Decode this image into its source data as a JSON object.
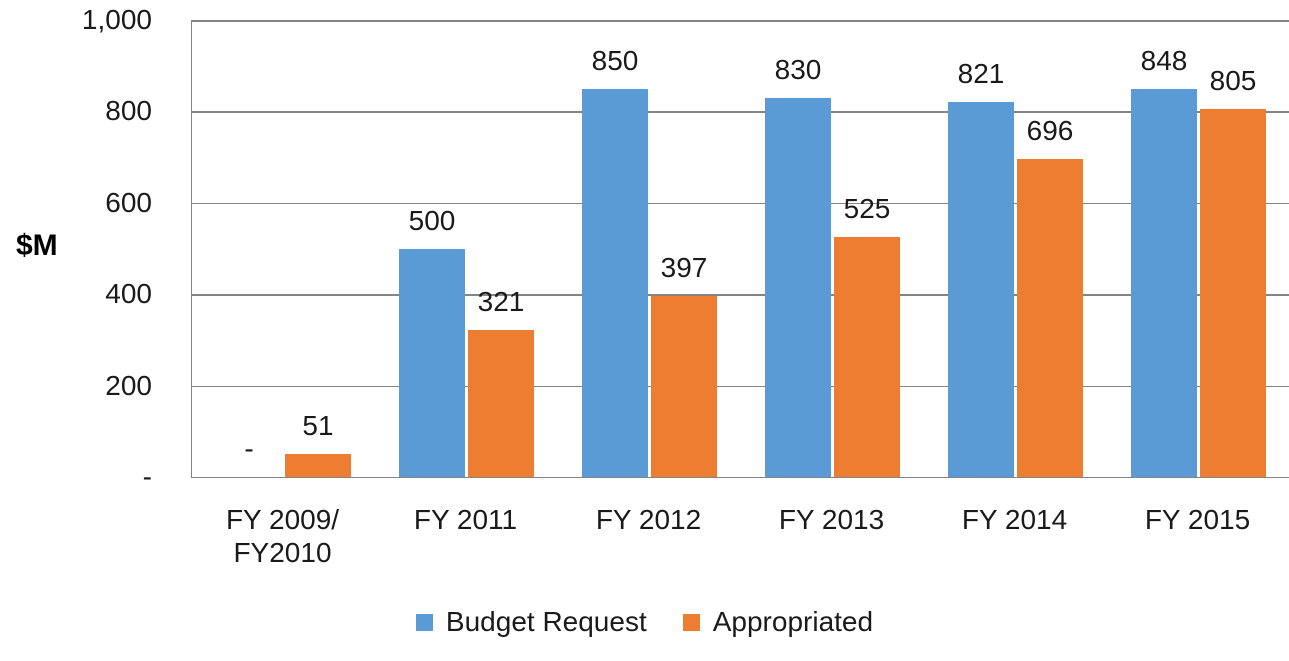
{
  "chart_data": {
    "type": "bar",
    "title": "",
    "ylabel": "$M",
    "xlabel": "",
    "ylim": [
      0,
      1000
    ],
    "y_tick_interval": 200,
    "y_ticks": [
      {
        "value": 1000,
        "label": "1,000"
      },
      {
        "value": 800,
        "label": "800"
      },
      {
        "value": 600,
        "label": "600"
      },
      {
        "value": 400,
        "label": "400"
      },
      {
        "value": 200,
        "label": "200"
      },
      {
        "value": 0,
        "label": "-"
      }
    ],
    "categories": [
      {
        "lines": [
          "FY 2009/",
          "FY2010"
        ]
      },
      {
        "lines": [
          "FY 2011"
        ]
      },
      {
        "lines": [
          "FY 2012"
        ]
      },
      {
        "lines": [
          "FY 2013"
        ]
      },
      {
        "lines": [
          "FY 2014"
        ]
      },
      {
        "lines": [
          "FY 2015"
        ]
      }
    ],
    "series": [
      {
        "name": "Budget Request",
        "color": "#5B9BD5",
        "values": [
          0,
          500,
          850,
          830,
          821,
          848
        ],
        "labels": [
          "-",
          "500",
          "850",
          "830",
          "821",
          "848"
        ]
      },
      {
        "name": "Appropriated",
        "color": "#ED7D31",
        "values": [
          51,
          321,
          397,
          525,
          696,
          805
        ],
        "labels": [
          "51",
          "321",
          "397",
          "525",
          "696",
          "805"
        ]
      }
    ],
    "legend_position": "bottom",
    "grid": true,
    "gridline_color": "#848484",
    "text_color": "#1a1a1a",
    "background": "#ffffff"
  }
}
